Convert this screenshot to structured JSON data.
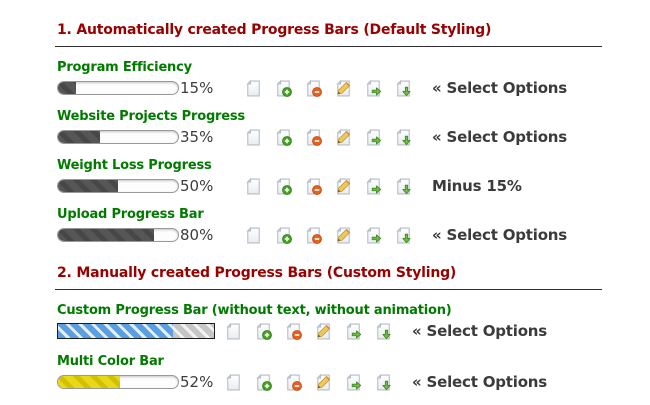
{
  "colors": {
    "heading_red": "#990000",
    "label_green": "#007b00",
    "text_dark": "#3b3b3b",
    "bar_fill_dark": "#4f4f4f",
    "bar_fill_yellow": "#e0cc10",
    "bar_fill_blue": "#5c9fe1",
    "bar_track": "#fdfdfd",
    "custom_border": "#1d1d1d"
  },
  "icons": [
    "page-icon",
    "page-add-icon",
    "page-delete-icon",
    "page-edit-icon",
    "page-go-icon",
    "page-put-icon"
  ],
  "section1": {
    "title": "1. Automatically created Progress Bars (Default Styling)",
    "rows": [
      {
        "label": "Program Efficiency",
        "percent_text": "15%",
        "fill_percent": 15,
        "action": "« Select Options"
      },
      {
        "label": "Website Projects Progress",
        "percent_text": "35%",
        "fill_percent": 35,
        "action": "« Select Options"
      },
      {
        "label": "Weight Loss Progress",
        "percent_text": "50%",
        "fill_percent": 50,
        "action": "Minus 15%"
      },
      {
        "label": "Upload Progress Bar",
        "percent_text": "80%",
        "fill_percent": 80,
        "action": "« Select Options"
      }
    ]
  },
  "section2": {
    "title": "2. Manually created Progress Bars (Custom Styling)",
    "rows": [
      {
        "label": "Custom Progress Bar (without text, without animation)",
        "fill_percent": 74,
        "action": "« Select Options"
      },
      {
        "label": "Multi Color Bar",
        "percent_text": "52%",
        "fill_percent": 52,
        "action": "« Select Options"
      }
    ]
  }
}
